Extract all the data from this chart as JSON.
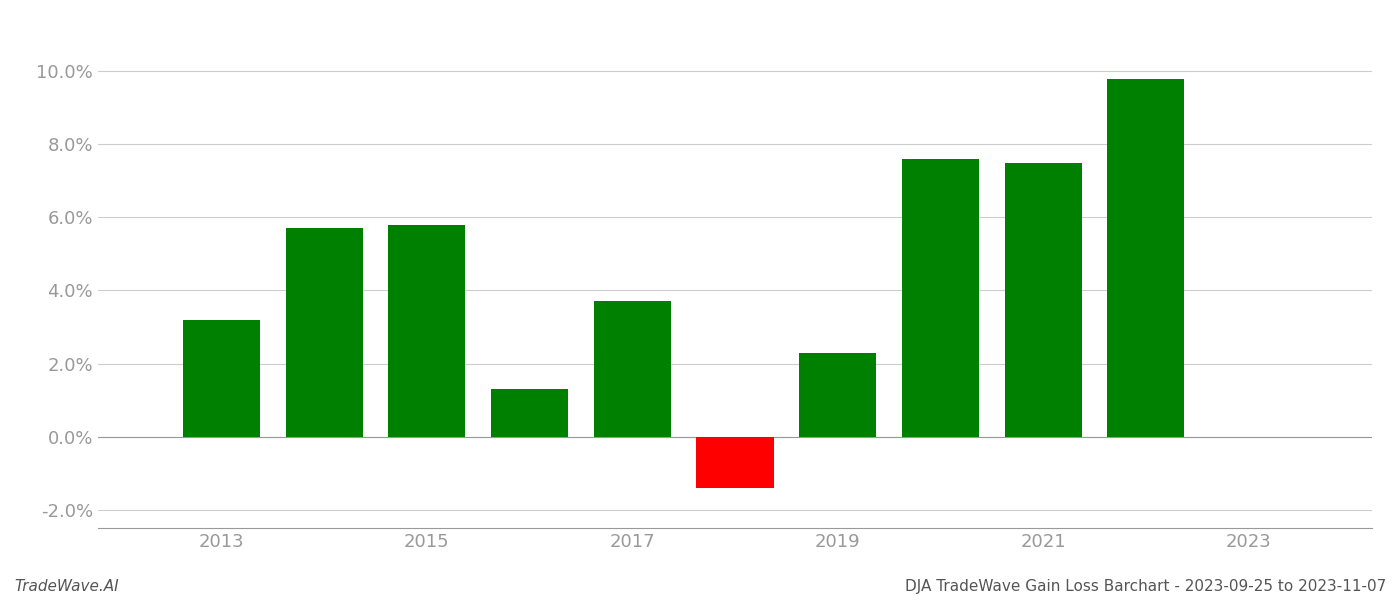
{
  "years": [
    2013,
    2014,
    2015,
    2016,
    2017,
    2018,
    2019,
    2020,
    2021,
    2022
  ],
  "values": [
    0.032,
    0.057,
    0.058,
    0.013,
    0.037,
    -0.014,
    0.023,
    0.076,
    0.075,
    0.098
  ],
  "bar_colors": [
    "#008000",
    "#008000",
    "#008000",
    "#008000",
    "#008000",
    "#ff0000",
    "#008000",
    "#008000",
    "#008000",
    "#008000"
  ],
  "ylim": [
    -0.025,
    0.108
  ],
  "yticks": [
    -0.02,
    0.0,
    0.02,
    0.04,
    0.06,
    0.08,
    0.1
  ],
  "xticks": [
    2013,
    2015,
    2017,
    2019,
    2021,
    2023
  ],
  "xlim": [
    2011.8,
    2024.2
  ],
  "tick_fontsize": 13,
  "tick_color": "#999999",
  "grid_color": "#cccccc",
  "background_color": "#ffffff",
  "footer_left": "TradeWave.AI",
  "footer_right": "DJA TradeWave Gain Loss Barchart - 2023-09-25 to 2023-11-07",
  "footer_fontsize": 11,
  "bar_width": 0.75
}
